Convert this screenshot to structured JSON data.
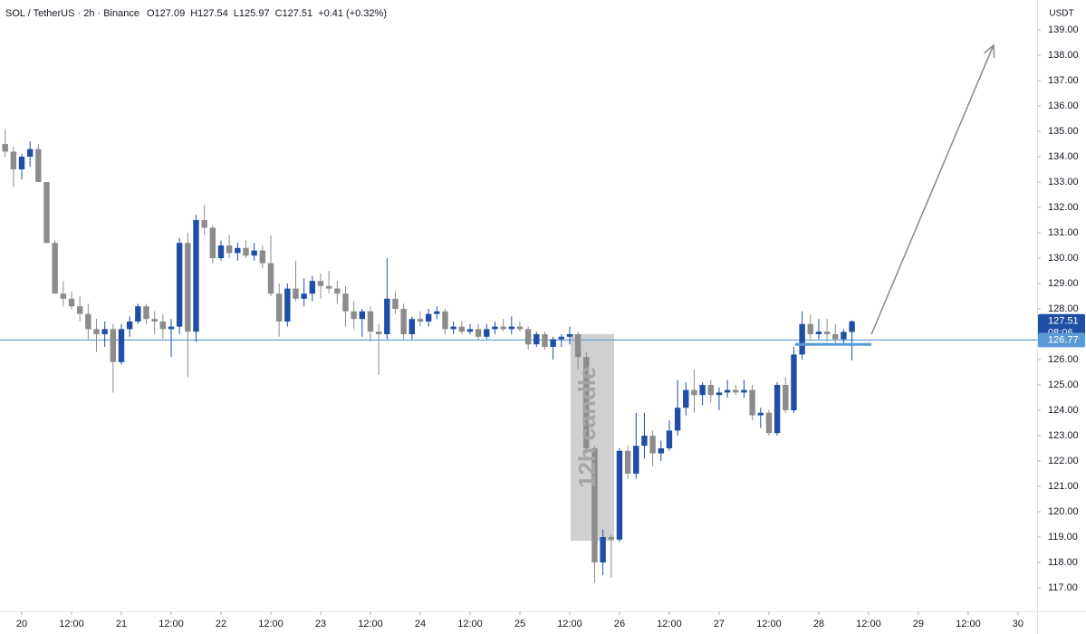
{
  "chart_data": {
    "type": "candlestick",
    "title": "SOL / TetherUS · 2h · Binance",
    "header_values": [
      "O127.09",
      "H127.54",
      "L125.97",
      "C127.51",
      "+0.41 (+0.32%)"
    ],
    "y_axis_label": "USDT",
    "up_color": "#1e4fa5",
    "down_color": "#8c8c8c",
    "x": [
      -4,
      -2,
      0,
      2,
      4,
      6,
      8,
      10,
      12,
      14,
      16,
      18,
      20,
      22,
      24,
      26,
      28,
      30,
      32,
      34,
      36,
      38,
      40,
      42,
      44,
      46,
      48,
      50,
      52,
      54,
      56,
      58,
      60,
      62,
      64,
      66,
      68,
      70,
      72,
      74,
      76,
      78,
      80,
      82,
      84,
      86,
      88,
      90,
      92,
      94,
      96,
      98,
      100,
      102,
      104,
      106,
      108,
      110,
      112,
      114,
      116,
      118,
      120,
      122,
      124,
      126,
      128,
      130,
      132,
      134,
      136,
      138,
      140,
      142,
      144,
      146,
      148,
      150,
      152,
      154,
      156,
      158,
      160,
      162,
      164,
      166,
      168,
      170,
      172,
      174,
      176,
      178,
      180,
      182,
      184,
      186,
      188,
      190,
      192,
      194,
      196,
      198,
      200
    ],
    "open": [
      134.5,
      134.2,
      133.5,
      134.0,
      134.3,
      133.0,
      130.6,
      128.6,
      128.4,
      128.1,
      127.8,
      127.2,
      127.0,
      127.2,
      125.9,
      127.2,
      127.5,
      128.1,
      127.6,
      127.5,
      127.2,
      127.3,
      130.6,
      127.1,
      131.5,
      131.2,
      130.0,
      130.5,
      130.2,
      130.4,
      130.1,
      130.3,
      129.8,
      128.6,
      127.5,
      128.8,
      128.4,
      128.6,
      129.1,
      128.9,
      128.8,
      128.6,
      127.9,
      127.6,
      127.9,
      127.1,
      127.0,
      128.4,
      128.0,
      127.0,
      127.6,
      127.5,
      127.8,
      127.9,
      127.2,
      127.3,
      127.1,
      127.2,
      126.9,
      127.2,
      127.3,
      127.2,
      127.3,
      127.2,
      126.6,
      127.0,
      126.5,
      126.8,
      126.9,
      127.0,
      126.1,
      122.5,
      118.0,
      119.0,
      118.9,
      122.4,
      121.5,
      122.6,
      123.0,
      122.3,
      122.5,
      123.2,
      124.1,
      124.8,
      124.6,
      125.0,
      124.6,
      124.7,
      124.8,
      124.7,
      124.8,
      123.8,
      123.9,
      123.1,
      125.0,
      124.0,
      126.2,
      127.4,
      127.0,
      127.1,
      127.0,
      126.8,
      127.09
    ],
    "high": [
      135.1,
      134.4,
      134.1,
      134.6,
      134.5,
      133.0,
      130.7,
      129.1,
      128.7,
      128.5,
      128.2,
      127.6,
      127.5,
      127.4,
      127.4,
      127.7,
      128.2,
      128.2,
      127.9,
      127.8,
      127.6,
      130.8,
      131.0,
      131.7,
      132.1,
      131.3,
      130.7,
      130.9,
      130.6,
      130.7,
      130.6,
      130.5,
      130.9,
      129.0,
      129.0,
      129.9,
      129.2,
      129.3,
      129.4,
      129.5,
      129.1,
      128.9,
      128.3,
      128.0,
      128.1,
      127.4,
      130.0,
      128.7,
      128.2,
      127.7,
      127.9,
      128.0,
      128.1,
      128.0,
      127.5,
      127.5,
      127.4,
      127.4,
      127.4,
      127.5,
      127.6,
      127.7,
      127.5,
      127.3,
      127.1,
      127.1,
      126.9,
      127.0,
      127.3,
      127.1,
      126.3,
      122.6,
      119.3,
      119.1,
      122.5,
      122.6,
      123.9,
      123.9,
      123.2,
      122.8,
      123.6,
      125.2,
      125.1,
      125.6,
      125.1,
      125.2,
      124.9,
      125.2,
      125.0,
      125.2,
      125.0,
      124.1,
      124.0,
      125.1,
      125.3,
      126.5,
      127.9,
      127.8,
      127.6,
      127.6,
      127.4,
      127.2,
      127.54
    ],
    "low": [
      134.0,
      132.8,
      133.1,
      133.6,
      133.0,
      130.6,
      128.6,
      128.1,
      128.0,
      127.5,
      126.8,
      126.3,
      126.5,
      124.7,
      125.8,
      126.9,
      127.4,
      127.4,
      127.0,
      126.8,
      126.1,
      127.0,
      125.3,
      126.7,
      130.9,
      129.8,
      129.9,
      130.0,
      129.9,
      130.0,
      129.9,
      129.6,
      128.5,
      126.9,
      127.3,
      128.3,
      128.1,
      128.3,
      128.4,
      128.6,
      128.2,
      127.3,
      127.2,
      126.9,
      126.7,
      125.4,
      126.8,
      127.8,
      126.8,
      126.8,
      127.3,
      127.3,
      127.6,
      127.0,
      127.0,
      127.0,
      127.0,
      126.8,
      126.8,
      127.0,
      127.1,
      127.0,
      127.1,
      126.4,
      126.5,
      126.4,
      126.0,
      126.5,
      126.6,
      125.6,
      122.3,
      117.2,
      117.5,
      117.4,
      118.8,
      121.3,
      121.3,
      122.1,
      121.8,
      122.0,
      122.4,
      123.0,
      123.8,
      123.9,
      124.2,
      124.3,
      124.0,
      124.5,
      124.6,
      124.5,
      123.6,
      123.3,
      123.0,
      123.0,
      123.9,
      123.9,
      126.0,
      126.8,
      126.8,
      126.7,
      126.6,
      126.6,
      125.97
    ],
    "close": [
      134.2,
      133.5,
      134.0,
      134.3,
      133.0,
      130.6,
      128.6,
      128.4,
      128.1,
      127.8,
      127.2,
      127.0,
      127.2,
      125.9,
      127.2,
      127.5,
      128.1,
      127.6,
      127.5,
      127.2,
      127.3,
      130.6,
      127.1,
      131.5,
      131.2,
      130.0,
      130.5,
      130.2,
      130.4,
      130.1,
      130.3,
      129.8,
      128.6,
      127.5,
      128.8,
      128.4,
      128.6,
      129.1,
      128.9,
      128.8,
      128.6,
      127.9,
      127.6,
      127.9,
      127.1,
      127.0,
      128.4,
      128.0,
      127.0,
      127.6,
      127.5,
      127.8,
      127.9,
      127.2,
      127.3,
      127.1,
      127.2,
      126.9,
      127.2,
      127.3,
      127.2,
      127.3,
      127.2,
      126.6,
      127.0,
      126.5,
      126.8,
      126.9,
      127.0,
      126.1,
      122.5,
      118.0,
      119.0,
      118.9,
      122.4,
      121.5,
      122.6,
      123.0,
      122.3,
      122.5,
      123.2,
      124.1,
      124.8,
      124.6,
      125.0,
      124.6,
      124.7,
      124.8,
      124.7,
      124.8,
      123.8,
      123.9,
      123.1,
      125.0,
      124.0,
      126.2,
      127.4,
      127.0,
      127.1,
      127.0,
      126.8,
      127.09,
      127.51
    ],
    "xlim": [
      -5.24,
      244.6
    ],
    "xticks": [
      {
        "value": 0,
        "label": "20"
      },
      {
        "value": 12,
        "label": "12:00"
      },
      {
        "value": 24,
        "label": "21"
      },
      {
        "value": 36,
        "label": "12:00"
      },
      {
        "value": 48,
        "label": "22"
      },
      {
        "value": 60,
        "label": "12:00"
      },
      {
        "value": 72,
        "label": "23"
      },
      {
        "value": 84,
        "label": "12:00"
      },
      {
        "value": 96,
        "label": "24"
      },
      {
        "value": 108,
        "label": "12:00"
      },
      {
        "value": 120,
        "label": "25"
      },
      {
        "value": 132,
        "label": "12:00"
      },
      {
        "value": 144,
        "label": "26"
      },
      {
        "value": 156,
        "label": "12:00"
      },
      {
        "value": 168,
        "label": "27"
      },
      {
        "value": 180,
        "label": "12:00"
      },
      {
        "value": 192,
        "label": "28"
      },
      {
        "value": 204,
        "label": "12:00"
      },
      {
        "value": 216,
        "label": "29"
      },
      {
        "value": 228,
        "label": "12:00"
      },
      {
        "value": 240,
        "label": "30"
      }
    ],
    "ylim": [
      116.07,
      140.18
    ],
    "yticks": [
      {
        "value": 117,
        "label": "117.00"
      },
      {
        "value": 118,
        "label": "118.00"
      },
      {
        "value": 119,
        "label": "119.00"
      },
      {
        "value": 120,
        "label": "120.00"
      },
      {
        "value": 121,
        "label": "121.00"
      },
      {
        "value": 122,
        "label": "122.00"
      },
      {
        "value": 123,
        "label": "123.00"
      },
      {
        "value": 124,
        "label": "124.00"
      },
      {
        "value": 125,
        "label": "125.00"
      },
      {
        "value": 126,
        "label": "126.00"
      },
      {
        "value": 127,
        "label": "127.00"
      },
      {
        "value": 128,
        "label": "128.00"
      },
      {
        "value": 129,
        "label": "129.00"
      },
      {
        "value": 130,
        "label": "130.00"
      },
      {
        "value": 131,
        "label": "131.00"
      },
      {
        "value": 132,
        "label": "132.00"
      },
      {
        "value": 133,
        "label": "133.00"
      },
      {
        "value": 134,
        "label": "134.00"
      },
      {
        "value": 135,
        "label": "135.00"
      },
      {
        "value": 136,
        "label": "136.00"
      },
      {
        "value": 137,
        "label": "137.00"
      },
      {
        "value": 138,
        "label": "138.00"
      },
      {
        "value": 139,
        "label": "139.00"
      }
    ],
    "grid": false,
    "last_price": {
      "value": 127.51,
      "countdown": "08:06",
      "color": "#1e4fa5"
    },
    "level": {
      "value": 126.77,
      "color": "#5b9bd5"
    },
    "zone": {
      "x": [
        186.3,
        204.7
      ],
      "y": 126.6,
      "color": "#5b9bd5"
    },
    "highlight_box": {
      "label": "12h candle",
      "x": [
        132.2,
        142.7
      ],
      "y": [
        118.85,
        127.0
      ],
      "color": "#c8c8c8"
    },
    "arrow": {
      "x": [
        204.7,
        234.1
      ],
      "y": [
        127.0,
        138.4
      ],
      "color": "#888888"
    }
  }
}
